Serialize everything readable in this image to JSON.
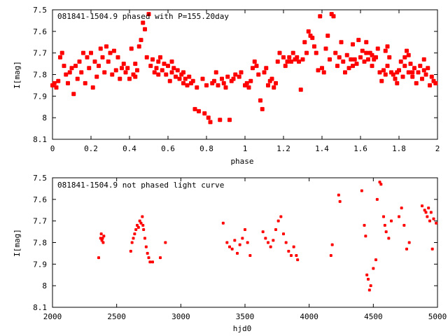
{
  "chart_data": [
    {
      "type": "scatter",
      "title": "081841-1504.9 phased with P=155.20day",
      "xlabel": "phase",
      "ylabel": "I[mag]",
      "xlim": [
        0,
        2
      ],
      "ylim": [
        8.1,
        7.5
      ],
      "y_inverted": true,
      "x_ticks": [
        "0",
        "0.2",
        "0.4",
        "0.6",
        "0.8",
        "1",
        "1.2",
        "1.4",
        "1.6",
        "1.8",
        "2"
      ],
      "y_ticks": [
        "7.5",
        "7.6",
        "7.7",
        "7.8",
        "7.9",
        "8",
        "8.1"
      ],
      "marker_color": "#ff0000",
      "points": [
        [
          0.0,
          7.85
        ],
        [
          0.01,
          7.84
        ],
        [
          0.02,
          7.86
        ],
        [
          0.03,
          7.83
        ],
        [
          0.04,
          7.72
        ],
        [
          0.05,
          7.7
        ],
        [
          0.06,
          7.76
        ],
        [
          0.07,
          7.8
        ],
        [
          0.08,
          7.84
        ],
        [
          0.09,
          7.79
        ],
        [
          0.1,
          7.77
        ],
        [
          0.11,
          7.89
        ],
        [
          0.12,
          7.76
        ],
        [
          0.13,
          7.82
        ],
        [
          0.14,
          7.74
        ],
        [
          0.15,
          7.79
        ],
        [
          0.16,
          7.7
        ],
        [
          0.17,
          7.84
        ],
        [
          0.18,
          7.72
        ],
        [
          0.19,
          7.77
        ],
        [
          0.2,
          7.7
        ],
        [
          0.21,
          7.86
        ],
        [
          0.22,
          7.74
        ],
        [
          0.23,
          7.81
        ],
        [
          0.24,
          7.76
        ],
        [
          0.25,
          7.68
        ],
        [
          0.26,
          7.72
        ],
        [
          0.27,
          7.79
        ],
        [
          0.28,
          7.67
        ],
        [
          0.29,
          7.74
        ],
        [
          0.3,
          7.7
        ],
        [
          0.31,
          7.8
        ],
        [
          0.32,
          7.69
        ],
        [
          0.33,
          7.78
        ],
        [
          0.34,
          7.72
        ],
        [
          0.35,
          7.82
        ],
        [
          0.36,
          7.77
        ],
        [
          0.37,
          7.75
        ],
        [
          0.38,
          7.79
        ],
        [
          0.39,
          7.77
        ],
        [
          0.4,
          7.82
        ],
        [
          0.41,
          7.68
        ],
        [
          0.42,
          7.8
        ],
        [
          0.43,
          7.75
        ],
        [
          0.44,
          7.78
        ],
        [
          0.45,
          7.67
        ],
        [
          0.46,
          7.64
        ],
        [
          0.47,
          7.56
        ],
        [
          0.48,
          7.59
        ],
        [
          0.49,
          7.72
        ],
        [
          0.5,
          7.52
        ],
        [
          0.51,
          7.76
        ],
        [
          0.52,
          7.73
        ],
        [
          0.53,
          7.79
        ],
        [
          0.54,
          7.77
        ],
        [
          0.55,
          7.74
        ],
        [
          0.56,
          7.72
        ],
        [
          0.57,
          7.78
        ],
        [
          0.58,
          7.75
        ],
        [
          0.59,
          7.8
        ],
        [
          0.6,
          7.76
        ],
        [
          0.61,
          7.83
        ],
        [
          0.62,
          7.79
        ],
        [
          0.63,
          7.77
        ],
        [
          0.64,
          7.81
        ],
        [
          0.65,
          7.78
        ],
        [
          0.66,
          7.82
        ],
        [
          0.67,
          7.8
        ],
        [
          0.68,
          7.84
        ],
        [
          0.69,
          7.82
        ],
        [
          0.7,
          7.85
        ],
        [
          0.71,
          7.81
        ],
        [
          0.72,
          7.84
        ],
        [
          0.73,
          7.83
        ],
        [
          0.74,
          7.96
        ],
        [
          0.75,
          7.86
        ],
        [
          0.76,
          7.97
        ],
        [
          0.78,
          7.82
        ],
        [
          0.79,
          7.98
        ],
        [
          0.8,
          7.85
        ],
        [
          0.81,
          8.0
        ],
        [
          0.82,
          8.02
        ],
        [
          0.83,
          7.84
        ],
        [
          0.84,
          7.83
        ],
        [
          0.85,
          7.79
        ],
        [
          0.86,
          7.85
        ],
        [
          0.87,
          8.01
        ],
        [
          0.88,
          7.82
        ],
        [
          0.89,
          7.84
        ],
        [
          0.9,
          7.86
        ],
        [
          0.91,
          7.81
        ],
        [
          0.92,
          8.01
        ],
        [
          0.93,
          7.83
        ],
        [
          0.94,
          7.82
        ],
        [
          0.95,
          7.8
        ],
        [
          0.97,
          7.81
        ],
        [
          0.98,
          7.79
        ],
        [
          1.0,
          7.85
        ],
        [
          1.01,
          7.84
        ],
        [
          1.02,
          7.86
        ],
        [
          1.03,
          7.83
        ],
        [
          1.04,
          7.77
        ],
        [
          1.05,
          7.74
        ],
        [
          1.06,
          7.76
        ],
        [
          1.07,
          7.8
        ],
        [
          1.08,
          7.92
        ],
        [
          1.09,
          7.96
        ],
        [
          1.1,
          7.79
        ],
        [
          1.11,
          7.77
        ],
        [
          1.12,
          7.85
        ],
        [
          1.13,
          7.83
        ],
        [
          1.14,
          7.82
        ],
        [
          1.15,
          7.86
        ],
        [
          1.16,
          7.84
        ],
        [
          1.17,
          7.74
        ],
        [
          1.18,
          7.7
        ],
        [
          1.2,
          7.72
        ],
        [
          1.21,
          7.76
        ],
        [
          1.22,
          7.74
        ],
        [
          1.23,
          7.72
        ],
        [
          1.24,
          7.74
        ],
        [
          1.25,
          7.7
        ],
        [
          1.26,
          7.73
        ],
        [
          1.27,
          7.72
        ],
        [
          1.28,
          7.74
        ],
        [
          1.29,
          7.87
        ],
        [
          1.3,
          7.73
        ],
        [
          1.31,
          7.65
        ],
        [
          1.32,
          7.7
        ],
        [
          1.33,
          7.6
        ],
        [
          1.34,
          7.62
        ],
        [
          1.35,
          7.63
        ],
        [
          1.36,
          7.67
        ],
        [
          1.37,
          7.7
        ],
        [
          1.38,
          7.78
        ],
        [
          1.39,
          7.53
        ],
        [
          1.4,
          7.77
        ],
        [
          1.41,
          7.79
        ],
        [
          1.42,
          7.68
        ],
        [
          1.43,
          7.62
        ],
        [
          1.44,
          7.73
        ],
        [
          1.45,
          7.52
        ],
        [
          1.46,
          7.53
        ],
        [
          1.47,
          7.7
        ],
        [
          1.48,
          7.76
        ],
        [
          1.49,
          7.72
        ],
        [
          1.5,
          7.65
        ],
        [
          1.51,
          7.74
        ],
        [
          1.52,
          7.79
        ],
        [
          1.53,
          7.71
        ],
        [
          1.54,
          7.77
        ],
        [
          1.55,
          7.73
        ],
        [
          1.56,
          7.76
        ],
        [
          1.57,
          7.73
        ],
        [
          1.58,
          7.75
        ],
        [
          1.59,
          7.64
        ],
        [
          1.6,
          7.72
        ],
        [
          1.61,
          7.69
        ],
        [
          1.62,
          7.74
        ],
        [
          1.63,
          7.65
        ],
        [
          1.64,
          7.73
        ],
        [
          1.65,
          7.7
        ],
        [
          1.66,
          7.76
        ],
        [
          1.67,
          7.73
        ],
        [
          1.68,
          7.72
        ],
        [
          1.69,
          7.68
        ],
        [
          1.7,
          7.79
        ],
        [
          1.71,
          7.83
        ],
        [
          1.72,
          7.78
        ],
        [
          1.73,
          7.69
        ],
        [
          1.74,
          7.76
        ],
        [
          1.75,
          7.72
        ],
        [
          1.76,
          7.79
        ],
        [
          1.77,
          7.8
        ],
        [
          1.78,
          7.82
        ],
        [
          1.79,
          7.84
        ],
        [
          1.8,
          7.78
        ],
        [
          1.81,
          7.74
        ],
        [
          1.82,
          7.81
        ],
        [
          1.83,
          7.76
        ],
        [
          1.84,
          7.69
        ],
        [
          1.85,
          7.79
        ],
        [
          1.86,
          7.75
        ],
        [
          1.87,
          7.81
        ],
        [
          1.88,
          7.77
        ],
        [
          1.89,
          7.84
        ],
        [
          1.9,
          7.79
        ],
        [
          1.91,
          7.76
        ],
        [
          1.92,
          7.82
        ],
        [
          1.93,
          7.78
        ],
        [
          1.94,
          7.8
        ],
        [
          1.95,
          7.77
        ],
        [
          1.96,
          7.85
        ],
        [
          1.97,
          7.81
        ],
        [
          1.98,
          7.83
        ],
        [
          1.99,
          7.84
        ],
        [
          0.43,
          7.81
        ],
        [
          0.55,
          7.8
        ],
        [
          0.62,
          7.74
        ],
        [
          0.68,
          7.79
        ],
        [
          1.56,
          7.66
        ],
        [
          1.63,
          7.7
        ],
        [
          1.66,
          7.71
        ],
        [
          1.73,
          7.8
        ],
        [
          1.74,
          7.67
        ],
        [
          1.79,
          7.79
        ],
        [
          1.83,
          7.72
        ],
        [
          1.85,
          7.71
        ],
        [
          1.87,
          7.79
        ],
        [
          1.93,
          7.73
        ]
      ]
    },
    {
      "type": "scatter",
      "title": "081841-1504.9 not phased light curve",
      "xlabel": "hjd0",
      "ylabel": "I[mag]",
      "xlim": [
        2000,
        5000
      ],
      "ylim": [
        8.1,
        7.5
      ],
      "y_inverted": true,
      "x_ticks": [
        "2000",
        "2500",
        "3000",
        "3500",
        "4000",
        "4500",
        "5000"
      ],
      "y_ticks": [
        "7.5",
        "7.6",
        "7.7",
        "7.8",
        "7.9",
        "8",
        "8.1"
      ],
      "marker_color": "#ff0000",
      "points": [
        [
          2360,
          7.87
        ],
        [
          2375,
          7.78
        ],
        [
          2380,
          7.76
        ],
        [
          2385,
          7.79
        ],
        [
          2390,
          7.78
        ],
        [
          2395,
          7.8
        ],
        [
          2400,
          7.77
        ],
        [
          2610,
          7.84
        ],
        [
          2620,
          7.8
        ],
        [
          2630,
          7.78
        ],
        [
          2640,
          7.76
        ],
        [
          2650,
          7.74
        ],
        [
          2660,
          7.72
        ],
        [
          2670,
          7.73
        ],
        [
          2680,
          7.7
        ],
        [
          2690,
          7.71
        ],
        [
          2700,
          7.68
        ],
        [
          2705,
          7.72
        ],
        [
          2710,
          7.74
        ],
        [
          2720,
          7.78
        ],
        [
          2730,
          7.82
        ],
        [
          2740,
          7.85
        ],
        [
          2750,
          7.87
        ],
        [
          2760,
          7.89
        ],
        [
          2780,
          7.89
        ],
        [
          2840,
          7.87
        ],
        [
          2880,
          7.8
        ],
        [
          3330,
          7.71
        ],
        [
          3360,
          7.8
        ],
        [
          3380,
          7.82
        ],
        [
          3400,
          7.83
        ],
        [
          3420,
          7.79
        ],
        [
          3440,
          7.85
        ],
        [
          3460,
          7.81
        ],
        [
          3480,
          7.78
        ],
        [
          3500,
          7.74
        ],
        [
          3520,
          7.8
        ],
        [
          3540,
          7.86
        ],
        [
          3640,
          7.75
        ],
        [
          3660,
          7.78
        ],
        [
          3680,
          7.8
        ],
        [
          3700,
          7.82
        ],
        [
          3720,
          7.79
        ],
        [
          3740,
          7.74
        ],
        [
          3760,
          7.7
        ],
        [
          3780,
          7.68
        ],
        [
          3800,
          7.76
        ],
        [
          3820,
          7.8
        ],
        [
          3840,
          7.84
        ],
        [
          3860,
          7.86
        ],
        [
          3880,
          7.82
        ],
        [
          3900,
          7.86
        ],
        [
          3910,
          7.88
        ],
        [
          4170,
          7.86
        ],
        [
          4180,
          7.81
        ],
        [
          4230,
          7.58
        ],
        [
          4240,
          7.61
        ],
        [
          4410,
          7.56
        ],
        [
          4430,
          7.72
        ],
        [
          4440,
          7.77
        ],
        [
          4450,
          7.95
        ],
        [
          4460,
          7.97
        ],
        [
          4470,
          8.02
        ],
        [
          4480,
          8.0
        ],
        [
          4500,
          7.92
        ],
        [
          4520,
          7.88
        ],
        [
          4530,
          7.6
        ],
        [
          4550,
          7.52
        ],
        [
          4560,
          7.53
        ],
        [
          4580,
          7.68
        ],
        [
          4590,
          7.72
        ],
        [
          4600,
          7.75
        ],
        [
          4620,
          7.78
        ],
        [
          4640,
          7.7
        ],
        [
          4700,
          7.68
        ],
        [
          4720,
          7.64
        ],
        [
          4740,
          7.72
        ],
        [
          4760,
          7.83
        ],
        [
          4780,
          7.8
        ],
        [
          4880,
          7.63
        ],
        [
          4900,
          7.65
        ],
        [
          4910,
          7.66
        ],
        [
          4920,
          7.68
        ],
        [
          4930,
          7.64
        ],
        [
          4940,
          7.7
        ],
        [
          4950,
          7.66
        ],
        [
          4960,
          7.83
        ],
        [
          4970,
          7.69
        ],
        [
          4990,
          7.71
        ]
      ]
    }
  ]
}
